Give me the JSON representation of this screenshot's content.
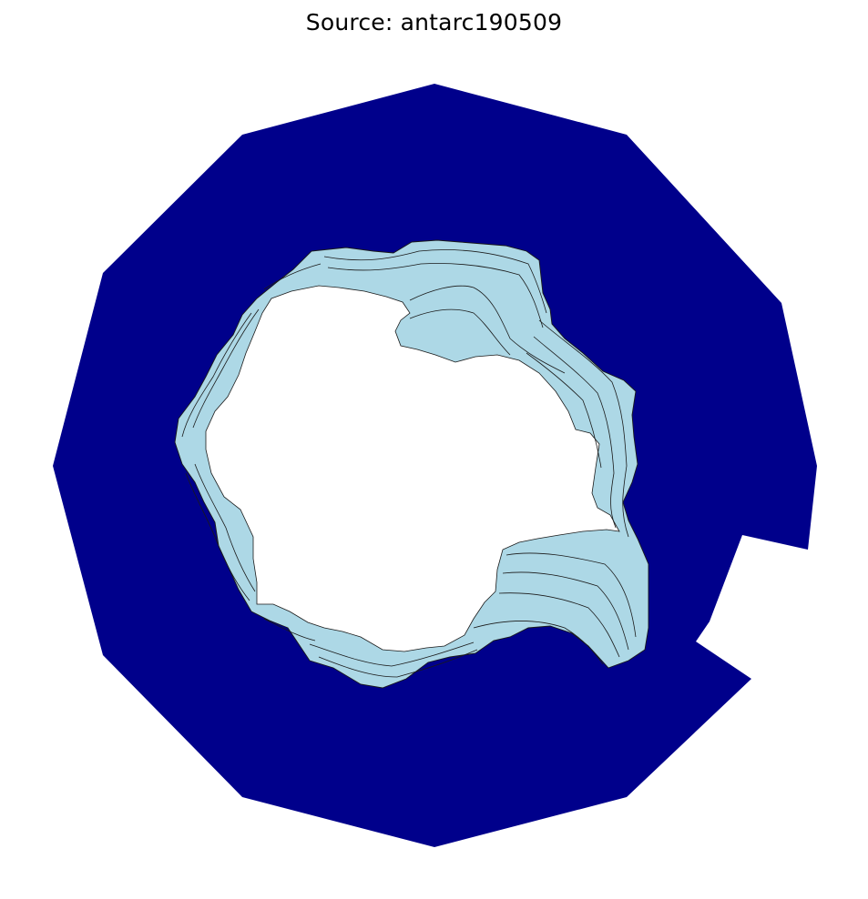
{
  "map": {
    "title": "Source: antarc190509",
    "colors": {
      "ocean": "#00008b",
      "ice": "#add8e6",
      "land": "#ffffff",
      "contour": "#1a1a1a"
    },
    "layers": [
      "ocean",
      "sea-ice",
      "antarctica-land",
      "ice-contours"
    ]
  }
}
